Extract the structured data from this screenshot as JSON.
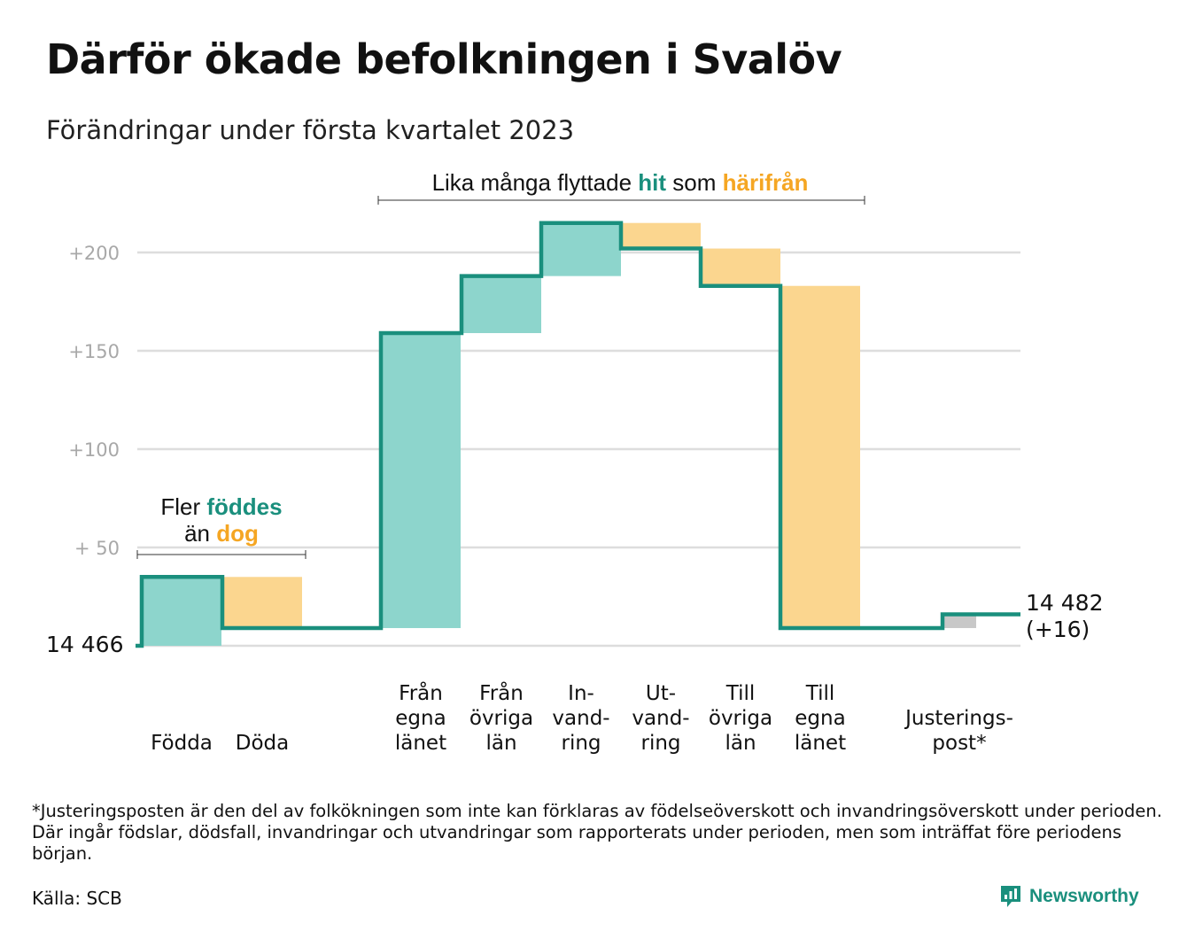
{
  "header": {
    "title": "Därför ökade befolkningen i Svalöv",
    "subtitle": "Förändringar under första kvartalet 2023"
  },
  "colors": {
    "inflow": "#8dd5cc",
    "outflow": "#fbd68f",
    "adjustment": "#c8c8c8",
    "line": "#1a8f7d",
    "accent_teal": "#1a8f7d",
    "accent_orange": "#f5a623",
    "grid": "#dddddd"
  },
  "annotations": {
    "births": {
      "line1_prefix": "Fler ",
      "line1_highlight": "föddes",
      "line2_prefix": "än ",
      "line2_highlight": "dog"
    },
    "migration": {
      "prefix": "Lika många flyttade ",
      "highlight1": "hit",
      "middle": " som ",
      "highlight2": "härifrån"
    }
  },
  "chart_data": {
    "type": "waterfall",
    "start_label": "14 466",
    "end_label_line1": "14 482",
    "end_label_line2": "(+16)",
    "y_ticks": [
      {
        "value": 50,
        "label": "+ 50"
      },
      {
        "value": 100,
        "label": "+100"
      },
      {
        "value": 150,
        "label": "+150"
      },
      {
        "value": 200,
        "label": "+200"
      }
    ],
    "ylim": [
      0,
      215
    ],
    "grid": true,
    "steps": [
      {
        "category": "Födda",
        "label_lines": [
          "Födda"
        ],
        "from": 0,
        "to": 35,
        "kind": "inflow"
      },
      {
        "category": "Döda",
        "label_lines": [
          "Döda"
        ],
        "from": 35,
        "to": 9,
        "kind": "outflow"
      },
      {
        "category": "Från egna länet",
        "label_lines": [
          "Från",
          "egna",
          "länet"
        ],
        "from": 9,
        "to": 159,
        "kind": "inflow"
      },
      {
        "category": "Från övriga län",
        "label_lines": [
          "Från",
          "övriga",
          "län"
        ],
        "from": 159,
        "to": 188,
        "kind": "inflow"
      },
      {
        "category": "Invandring",
        "label_lines": [
          "In-",
          "vand-",
          "ring"
        ],
        "from": 188,
        "to": 215,
        "kind": "inflow"
      },
      {
        "category": "Utvandring",
        "label_lines": [
          "Ut-",
          "vand-",
          "ring"
        ],
        "from": 215,
        "to": 202,
        "kind": "outflow"
      },
      {
        "category": "Till övriga län",
        "label_lines": [
          "Till",
          "övriga",
          "län"
        ],
        "from": 202,
        "to": 183,
        "kind": "outflow"
      },
      {
        "category": "Till egna länet",
        "label_lines": [
          "Till",
          "egna",
          "länet"
        ],
        "from": 183,
        "to": 9,
        "kind": "outflow"
      },
      {
        "category": "Justeringspost*",
        "label_lines": [
          "Justerings-",
          "post*"
        ],
        "from": 9,
        "to": 16,
        "kind": "adjustment"
      }
    ]
  },
  "footer": {
    "footnote": "*Justeringsposten är den del av folkökningen som inte kan förklaras av födelseöverskott och invandringsöverskott under perioden. Där ingår födslar, dödsfall, invandringar och utvandringar som rapporterats under perioden, men som inträffat före periodens början.",
    "source": "Källa: SCB",
    "brand": "Newsworthy"
  }
}
